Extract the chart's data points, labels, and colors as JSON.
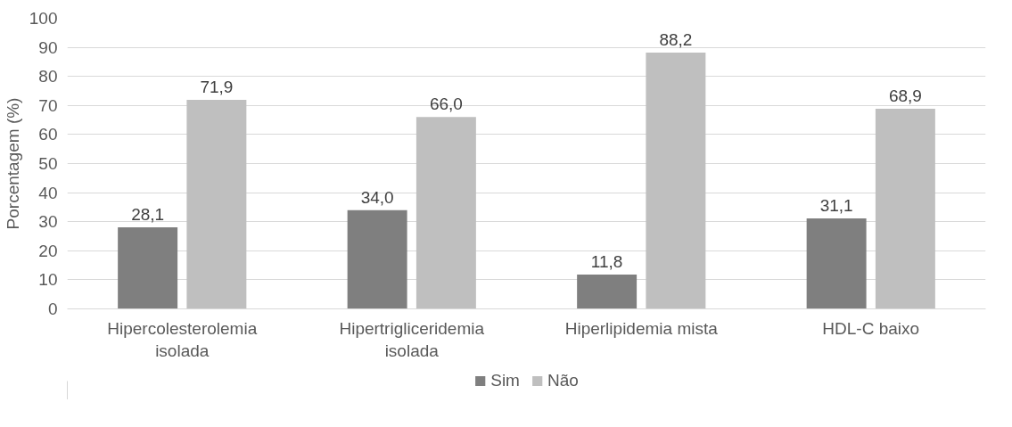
{
  "chart_data": {
    "type": "bar",
    "ylabel": "Porcentagem (%)",
    "categories": [
      "Hipercolesterolemia isolada",
      "Hipertrigliceridemia isolada",
      "Hiperlipidemia mista",
      "HDL-C baixo"
    ],
    "series": [
      {
        "name": "Sim",
        "color": "#7f7f7f",
        "values": [
          28.1,
          34.0,
          11.8,
          31.1
        ],
        "value_labels": [
          "28,1",
          "34,0",
          "11,8",
          "31,1"
        ]
      },
      {
        "name": "Não",
        "color": "#bfbfbf",
        "values": [
          71.9,
          66.0,
          88.2,
          68.9
        ],
        "value_labels": [
          "71,9",
          "66,0",
          "88,2",
          "68,9"
        ]
      }
    ],
    "ylim": [
      0,
      100
    ],
    "yticks": [
      0,
      10,
      20,
      30,
      40,
      50,
      60,
      70,
      80,
      90,
      100
    ],
    "grid": "y",
    "legend": "bottom"
  }
}
